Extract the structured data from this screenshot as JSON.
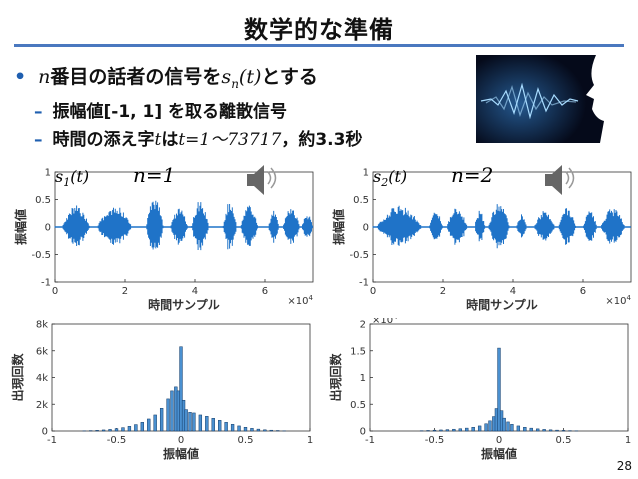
{
  "slide": {
    "title": "数学的な準備",
    "bullet_main": {
      "n": "n",
      "text": "番目の話者の信号を",
      "sym": "s",
      "sub": "n",
      "arg": "(t)",
      "after": "とする"
    },
    "bullet_sub1": "振幅値[-1, 1] を取る離散信号",
    "bullet_sub2": {
      "pre": "時間の添え字",
      "t": "t",
      "mid": "は",
      "range": "t=1～73717",
      "post": "，約3.3秒"
    },
    "page_number": "28"
  },
  "panels": [
    {
      "signal": "s1(t)",
      "n_label": "n=1"
    },
    {
      "signal": "s2(t)",
      "n_label": "n=2"
    }
  ],
  "chart_data": [
    {
      "type": "line",
      "title": "",
      "xlabel": "時間サンプル",
      "ylabel": "振幅値",
      "xlim": [
        0,
        73717
      ],
      "ylim": [
        -1,
        1
      ],
      "x_ticks": [
        "0",
        "2",
        "4",
        "6"
      ],
      "x_scale": "×10^4",
      "y_ticks": [
        "-1",
        "-0.5",
        "0",
        "0.5",
        "1"
      ],
      "segments": [
        [
          2000,
          10000,
          0.4
        ],
        [
          12000,
          22000,
          0.4
        ],
        [
          26000,
          31000,
          0.55
        ],
        [
          33000,
          38000,
          0.35
        ],
        [
          39000,
          44000,
          0.5
        ],
        [
          48000,
          52000,
          0.5
        ],
        [
          53000,
          58000,
          0.4
        ],
        [
          61000,
          64000,
          0.3
        ],
        [
          65000,
          70000,
          0.35
        ],
        [
          70500,
          73717,
          0.25
        ]
      ]
    },
    {
      "type": "line",
      "title": "",
      "xlabel": "時間サンプル",
      "ylabel": "振幅値",
      "xlim": [
        0,
        73717
      ],
      "ylim": [
        -1,
        1
      ],
      "x_ticks": [
        "0",
        "2",
        "4",
        "6"
      ],
      "x_scale": "×10^4",
      "y_ticks": [
        "-1",
        "-0.5",
        "0",
        "0.5",
        "1"
      ],
      "segments": [
        [
          1000,
          14000,
          0.4
        ],
        [
          16000,
          20000,
          0.3
        ],
        [
          21000,
          27000,
          0.35
        ],
        [
          29000,
          32000,
          0.3
        ],
        [
          33000,
          39000,
          0.45
        ],
        [
          41000,
          44000,
          0.25
        ],
        [
          46000,
          52000,
          0.3
        ],
        [
          53000,
          58000,
          0.35
        ],
        [
          60000,
          64000,
          0.3
        ],
        [
          65000,
          72000,
          0.35
        ]
      ]
    },
    {
      "type": "bar",
      "title": "",
      "xlabel": "振幅値",
      "ylabel": "出現回数",
      "xlim": [
        -1,
        1
      ],
      "ylim": [
        0,
        8000
      ],
      "x_ticks": [
        "-1",
        "-0.5",
        "0",
        "0.5",
        "1"
      ],
      "y_ticks": [
        "0",
        "2k",
        "4k",
        "6k",
        "8k"
      ],
      "y_scale": "",
      "bins": [
        [
          -0.75,
          15
        ],
        [
          -0.7,
          30
        ],
        [
          -0.65,
          50
        ],
        [
          -0.6,
          80
        ],
        [
          -0.55,
          120
        ],
        [
          -0.5,
          180
        ],
        [
          -0.45,
          250
        ],
        [
          -0.4,
          350
        ],
        [
          -0.35,
          480
        ],
        [
          -0.3,
          650
        ],
        [
          -0.25,
          900
        ],
        [
          -0.2,
          1200
        ],
        [
          -0.15,
          1700
        ],
        [
          -0.1,
          2400
        ],
        [
          -0.07,
          3000
        ],
        [
          -0.04,
          3300
        ],
        [
          -0.02,
          3000
        ],
        [
          0,
          6300
        ],
        [
          0.02,
          2300
        ],
        [
          0.04,
          1600
        ],
        [
          0.07,
          1400
        ],
        [
          0.1,
          1350
        ],
        [
          0.15,
          1200
        ],
        [
          0.2,
          1100
        ],
        [
          0.25,
          950
        ],
        [
          0.3,
          800
        ],
        [
          0.35,
          650
        ],
        [
          0.4,
          500
        ],
        [
          0.45,
          380
        ],
        [
          0.5,
          280
        ],
        [
          0.55,
          200
        ],
        [
          0.6,
          140
        ],
        [
          0.65,
          90
        ],
        [
          0.7,
          60
        ],
        [
          0.75,
          35
        ],
        [
          0.8,
          15
        ]
      ]
    },
    {
      "type": "bar",
      "title": "",
      "xlabel": "振幅値",
      "ylabel": "出現回数",
      "xlim": [
        -1,
        1
      ],
      "ylim": [
        0,
        20000
      ],
      "x_ticks": [
        "-1",
        "-0.5",
        "0",
        "0.5",
        "1"
      ],
      "y_ticks": [
        "0",
        "0.5",
        "1",
        "1.5",
        "2"
      ],
      "y_scale": "×10^4",
      "bins": [
        [
          -0.6,
          60
        ],
        [
          -0.55,
          100
        ],
        [
          -0.5,
          150
        ],
        [
          -0.45,
          200
        ],
        [
          -0.4,
          260
        ],
        [
          -0.35,
          330
        ],
        [
          -0.3,
          420
        ],
        [
          -0.25,
          540
        ],
        [
          -0.2,
          700
        ],
        [
          -0.15,
          950
        ],
        [
          -0.1,
          1350
        ],
        [
          -0.07,
          1900
        ],
        [
          -0.04,
          2700
        ],
        [
          -0.02,
          4200
        ],
        [
          0,
          15500
        ],
        [
          0.02,
          3800
        ],
        [
          0.04,
          2400
        ],
        [
          0.07,
          1700
        ],
        [
          0.1,
          1250
        ],
        [
          0.15,
          950
        ],
        [
          0.2,
          700
        ],
        [
          0.25,
          530
        ],
        [
          0.3,
          400
        ],
        [
          0.35,
          300
        ],
        [
          0.4,
          220
        ],
        [
          0.45,
          160
        ],
        [
          0.5,
          110
        ],
        [
          0.55,
          70
        ],
        [
          0.6,
          40
        ]
      ]
    }
  ]
}
